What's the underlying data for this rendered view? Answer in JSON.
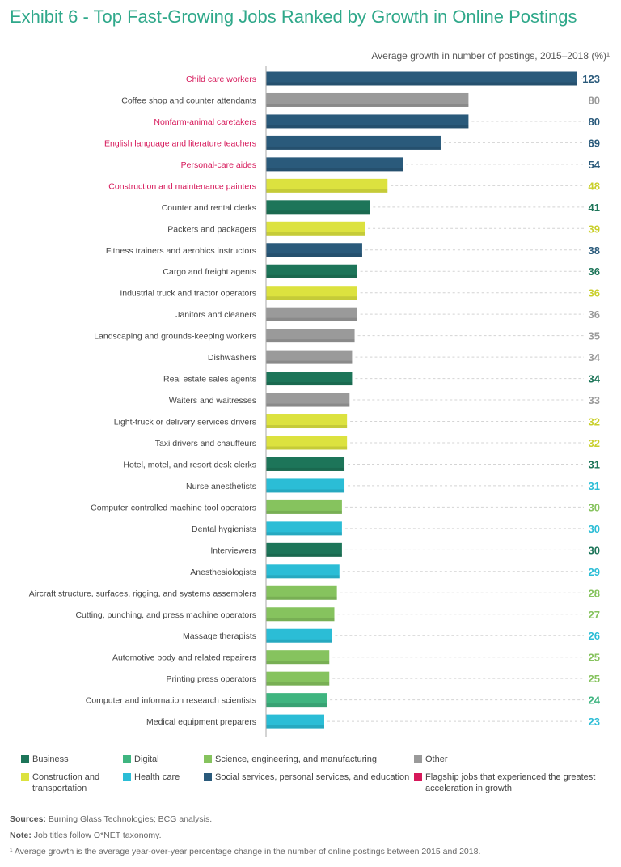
{
  "title": "Exhibit 6 - Top Fast-Growing Jobs Ranked by Growth in Online Postings",
  "colors": {
    "business": "#1d7559",
    "digital": "#3fb580",
    "science": "#86c35e",
    "other": "#9a9a9a",
    "construction": "#dce23f",
    "health": "#2bbdd6",
    "social": "#2a5a7b",
    "flagship": "#d6185a"
  },
  "chart_data": {
    "type": "bar",
    "orientation": "horizontal",
    "subtitle": "Average growth in number of postings, 2015–2018 (%)¹",
    "xlim": [
      0,
      123
    ],
    "rows": [
      {
        "label": "Child care workers",
        "value": 123,
        "group": "social",
        "flagship": true
      },
      {
        "label": "Coffee shop and counter attendants",
        "value": 80,
        "group": "other",
        "flagship": false
      },
      {
        "label": "Nonfarm-animal caretakers",
        "value": 80,
        "group": "social",
        "flagship": true
      },
      {
        "label": "English language and literature teachers",
        "value": 69,
        "group": "social",
        "flagship": true
      },
      {
        "label": "Personal-care aides",
        "value": 54,
        "group": "social",
        "flagship": true
      },
      {
        "label": "Construction and maintenance painters",
        "value": 48,
        "group": "construction",
        "flagship": true
      },
      {
        "label": "Counter and rental clerks",
        "value": 41,
        "group": "business",
        "flagship": false
      },
      {
        "label": "Packers and packagers",
        "value": 39,
        "group": "construction",
        "flagship": false
      },
      {
        "label": "Fitness trainers and aerobics instructors",
        "value": 38,
        "group": "social",
        "flagship": false
      },
      {
        "label": "Cargo and freight agents",
        "value": 36,
        "group": "business",
        "flagship": false
      },
      {
        "label": "Industrial truck and tractor operators",
        "value": 36,
        "group": "construction",
        "flagship": false
      },
      {
        "label": "Janitors and cleaners",
        "value": 36,
        "group": "other",
        "flagship": false
      },
      {
        "label": "Landscaping and grounds-keeping workers",
        "value": 35,
        "group": "other",
        "flagship": false
      },
      {
        "label": "Dishwashers",
        "value": 34,
        "group": "other",
        "flagship": false
      },
      {
        "label": "Real estate sales agents",
        "value": 34,
        "group": "business",
        "flagship": false
      },
      {
        "label": "Waiters and waitresses",
        "value": 33,
        "group": "other",
        "flagship": false
      },
      {
        "label": "Light-truck or delivery services drivers",
        "value": 32,
        "group": "construction",
        "flagship": false
      },
      {
        "label": "Taxi drivers and chauffeurs",
        "value": 32,
        "group": "construction",
        "flagship": false
      },
      {
        "label": "Hotel, motel, and resort desk clerks",
        "value": 31,
        "group": "business",
        "flagship": false
      },
      {
        "label": "Nurse anesthetists",
        "value": 31,
        "group": "health",
        "flagship": false
      },
      {
        "label": "Computer-controlled machine tool operators",
        "value": 30,
        "group": "science",
        "flagship": false
      },
      {
        "label": "Dental hygienists",
        "value": 30,
        "group": "health",
        "flagship": false
      },
      {
        "label": "Interviewers",
        "value": 30,
        "group": "business",
        "flagship": false
      },
      {
        "label": "Anesthesiologists",
        "value": 29,
        "group": "health",
        "flagship": false
      },
      {
        "label": "Aircraft structure, surfaces, rigging, and systems assemblers",
        "value": 28,
        "group": "science",
        "flagship": false
      },
      {
        "label": "Cutting, punching, and press machine operators",
        "value": 27,
        "group": "science",
        "flagship": false
      },
      {
        "label": "Massage therapists",
        "value": 26,
        "group": "health",
        "flagship": false
      },
      {
        "label": "Automotive body and related repairers",
        "value": 25,
        "group": "science",
        "flagship": false
      },
      {
        "label": "Printing press operators",
        "value": 25,
        "group": "science",
        "flagship": false
      },
      {
        "label": "Computer and information research scientists",
        "value": 24,
        "group": "digital",
        "flagship": false
      },
      {
        "label": "Medical equipment preparers",
        "value": 23,
        "group": "health",
        "flagship": false
      }
    ]
  },
  "legend": [
    {
      "key": "business",
      "label": "Business"
    },
    {
      "key": "digital",
      "label": "Digital"
    },
    {
      "key": "science",
      "label": "Science, engineering, and manufacturing"
    },
    {
      "key": "other",
      "label": "Other"
    },
    {
      "key": "construction",
      "label": "Construction and transportation"
    },
    {
      "key": "health",
      "label": "Health care"
    },
    {
      "key": "social",
      "label": "Social services, personal services, and education"
    },
    {
      "key": "flagship",
      "label": "Flagship jobs that experienced the greatest acceleration in growth"
    }
  ],
  "footer": {
    "sources_label": "Sources:",
    "sources": "Burning Glass Technologies; BCG analysis.",
    "note_label": "Note:",
    "note": "Job titles follow O*NET taxonomy.",
    "footnote": "¹ Average growth is the average year-over-year percentage change in the number of online postings between 2015 and 2018."
  }
}
